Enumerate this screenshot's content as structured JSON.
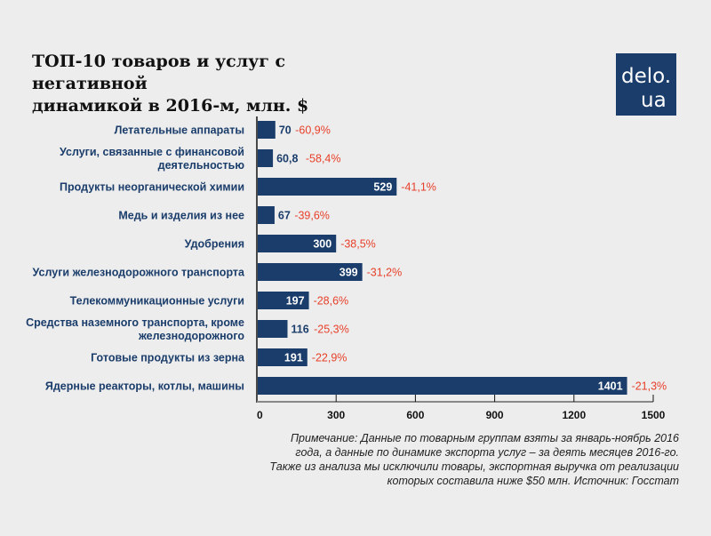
{
  "header": {
    "title_line1": "ТОП-10 товаров и услуг с негативной",
    "title_line2": "динамикой в 2016-м, млн. $"
  },
  "logo": {
    "line1": "delo.",
    "line2": "ua"
  },
  "colors": {
    "bar": "#1a3d6b",
    "label": "#1a3d6b",
    "change": "#e8402a",
    "axis": "#111111",
    "background": "#ededed"
  },
  "chart_data": {
    "type": "bar",
    "orientation": "horizontal",
    "title": "ТОП-10 товаров и услуг с негативной динамикой в 2016-м, млн. $",
    "xlabel": "",
    "ylabel": "",
    "xlim": [
      0,
      1500
    ],
    "xticks": [
      "0",
      "300",
      "600",
      "900",
      "1200",
      "1500"
    ],
    "xtick_values": [
      0,
      300,
      600,
      900,
      1200,
      1500
    ],
    "grid": false,
    "categories": [
      [
        "Летательные аппараты"
      ],
      [
        "Услуги, связанные с финансовой",
        "деятельностью"
      ],
      [
        "Продукты неорганической химии"
      ],
      [
        "Медь и изделия из нее"
      ],
      [
        "Удобрения"
      ],
      [
        "Услуги железнодорожного транспорта"
      ],
      [
        "Телекоммуникационные услуги"
      ],
      [
        "Средства наземного транспорта, кроме",
        "железнодорожного"
      ],
      [
        "Готовые продукты из зерна"
      ],
      [
        "Ядерные реакторы, котлы, машины"
      ]
    ],
    "values": [
      70,
      60.8,
      529,
      67,
      300,
      399,
      197,
      116,
      191,
      1401
    ],
    "value_labels": [
      "70",
      "60,8",
      "529",
      "67",
      "300",
      "399",
      "197",
      "116",
      "191",
      "1401"
    ],
    "change_labels": [
      "-60,9%",
      "-58,4%",
      "-41,1%",
      "-39,6%",
      "-38,5%",
      "-31,2%",
      "-28,6%",
      "-25,3%",
      "-22,9%",
      "-21,3%"
    ]
  },
  "note": "Примечание: Данные по товарным группам взяты за январь-ноябрь 2016 года, а данные по динамике экспорта услуг – за деять месяцев 2016-го. Также из анализа мы исключили товары, экспортная выручка от реализации которых составила ниже $50 млн. Источник: Госстат"
}
